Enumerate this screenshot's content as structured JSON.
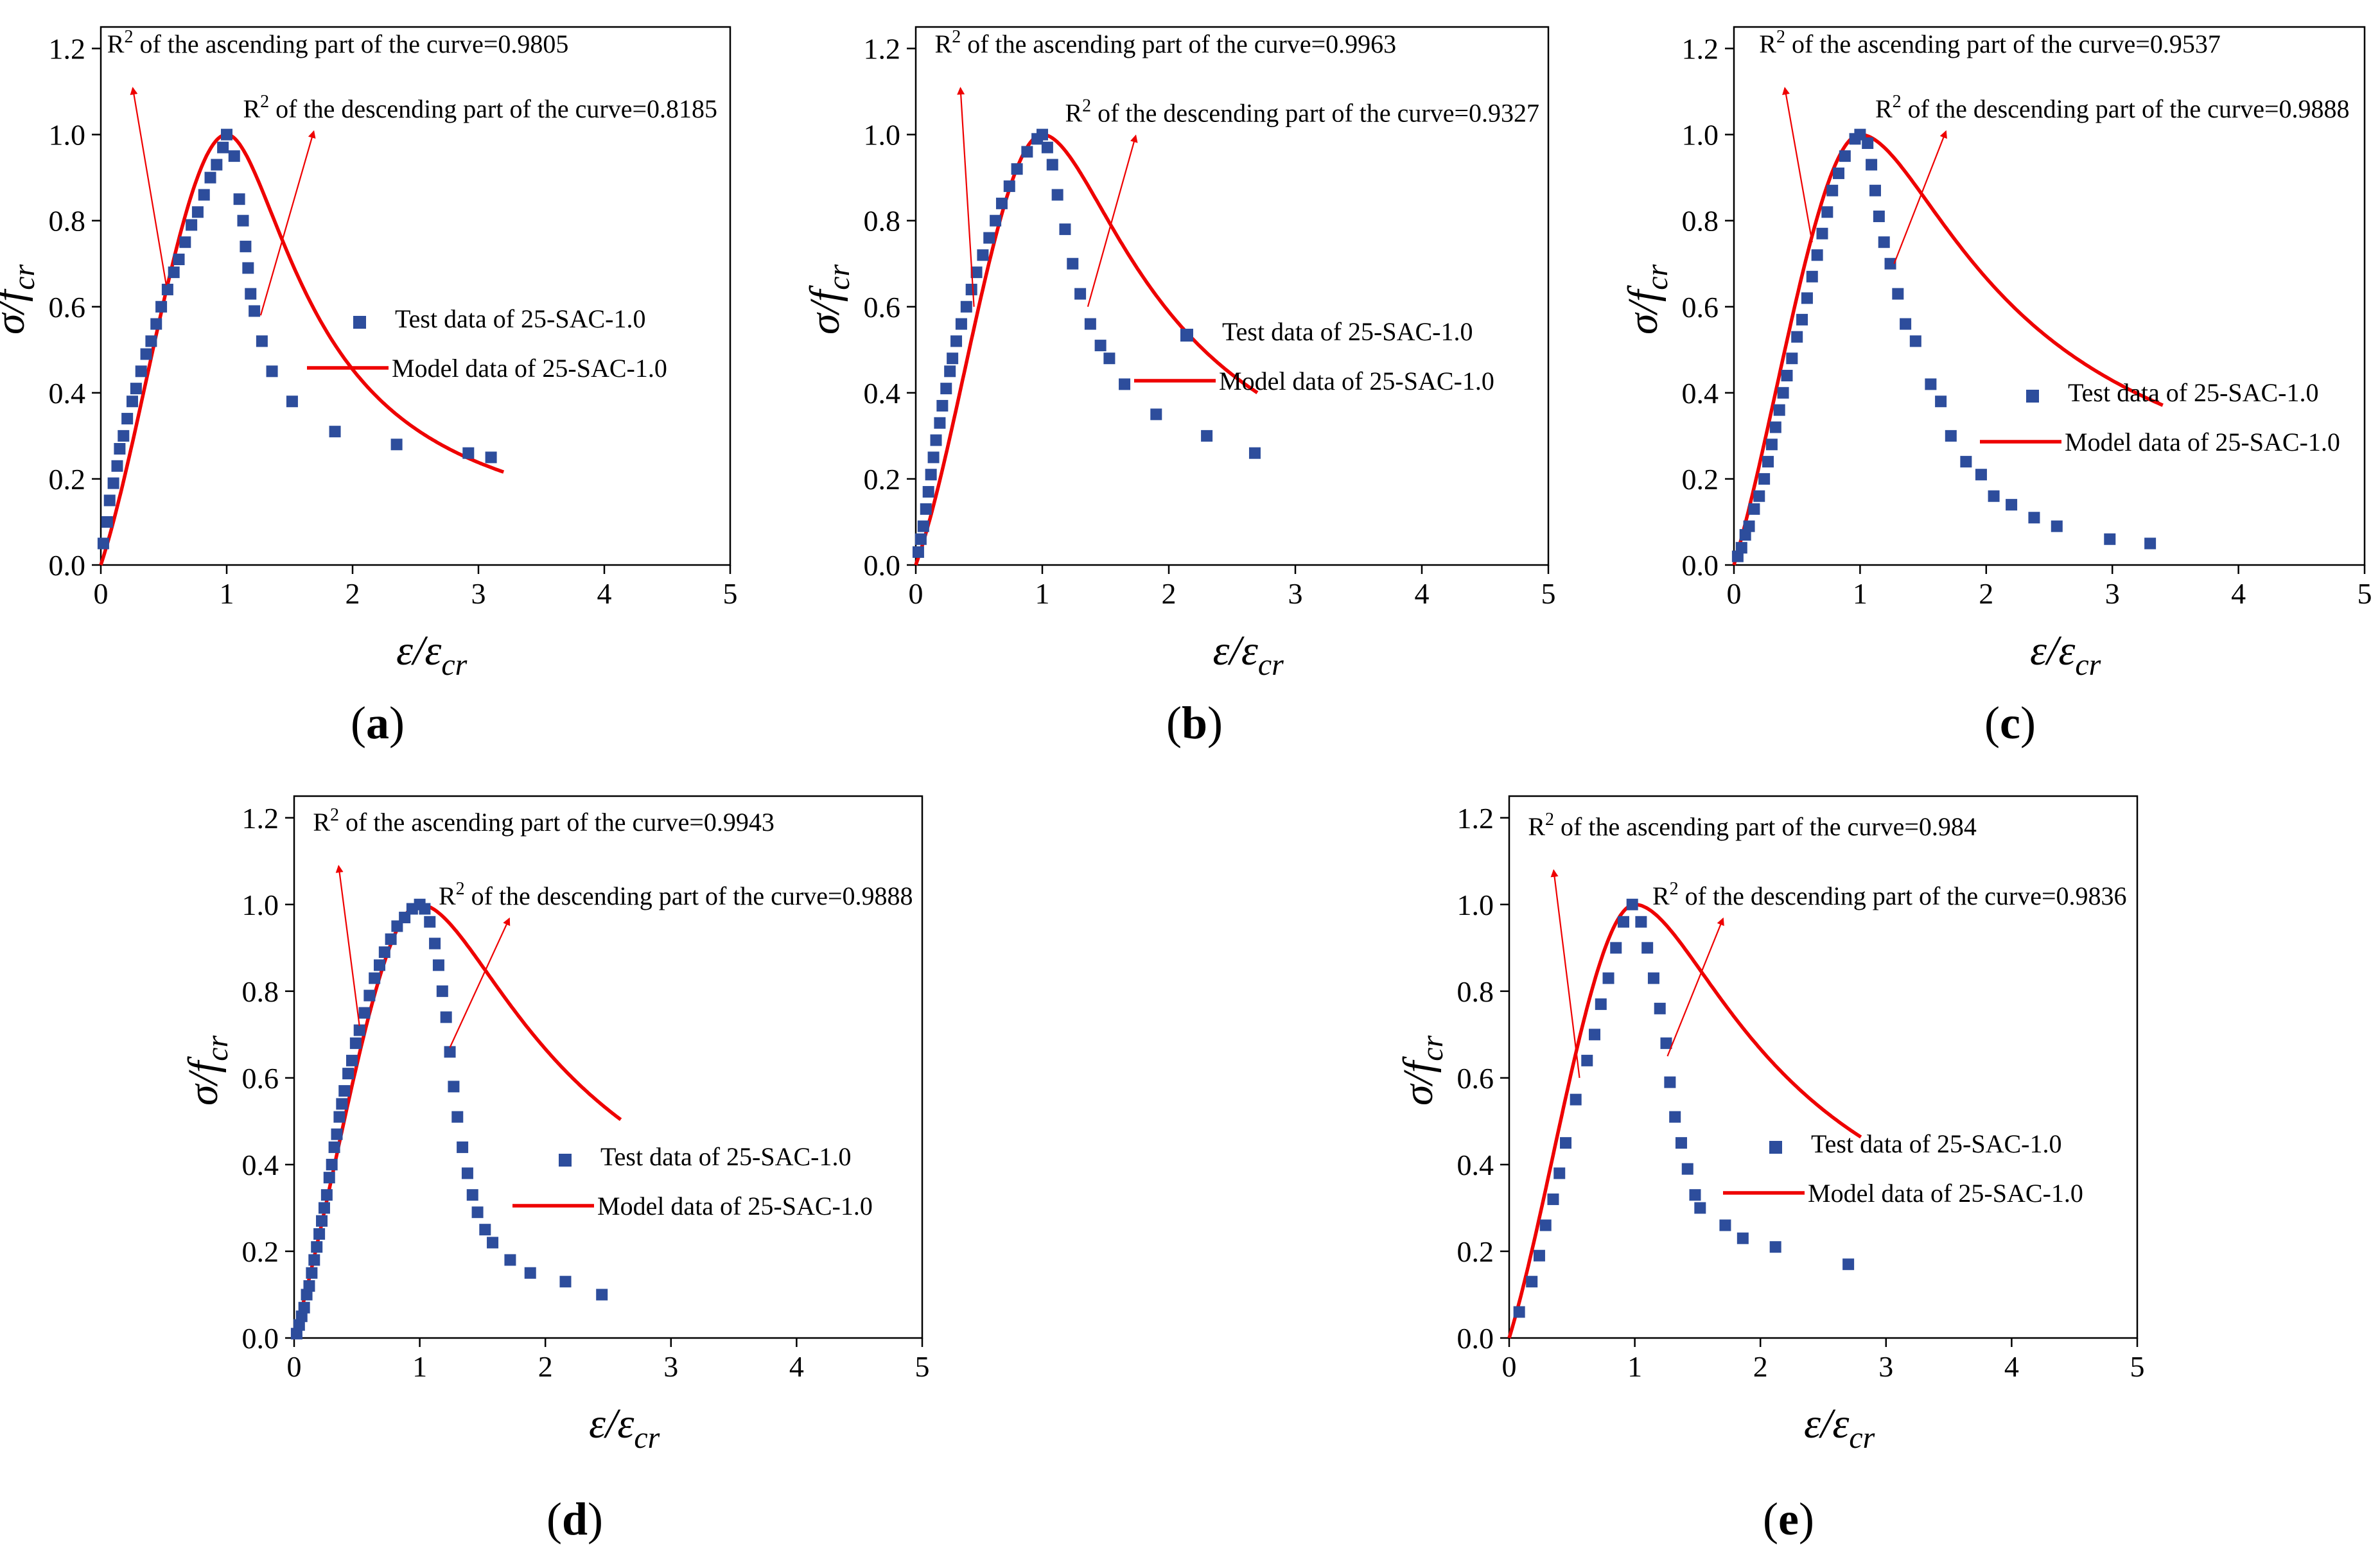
{
  "figure": {
    "colors": {
      "test": "#2d4d9c",
      "model": "#ee0000",
      "arrow": "#ee0000",
      "axis": "#000000"
    },
    "axis_labels": {
      "x_var": "ε/ε",
      "x_sub": "cr",
      "y_var": "σ/f",
      "y_sub": "cr"
    },
    "x_ticks": [
      0,
      1,
      2,
      3,
      4,
      5
    ],
    "y_ticks": [
      "0.0",
      "0.2",
      "0.4",
      "0.6",
      "0.8",
      "1.0",
      "1.2"
    ]
  },
  "chart_data": [
    {
      "panel": "a",
      "type": "scatter+line",
      "caption_open": "(",
      "caption_letter": "a",
      "caption_close": ")",
      "xlim": [
        0,
        5
      ],
      "ylim": [
        0,
        1.25
      ],
      "xlabel": "ε/εcr",
      "ylabel": "σ/fcr",
      "annotation_asc": {
        "prefix": "R",
        "sup": "2",
        "text": " of the ascending part of the curve=0.9805",
        "x": 0.05,
        "y": 1.19,
        "target_x": 0.52,
        "target_y": 0.65
      },
      "annotation_desc": {
        "prefix": "R",
        "sup": "2",
        "text": " of the descending part of the curve=0.8185",
        "x": 1.13,
        "y": 1.04,
        "target_x": 1.27,
        "target_y": 0.58
      },
      "legend": {
        "test": "Test data of 25-SAC-1.0",
        "model": "Model data of 25-SAC-1.0"
      },
      "test_points": [
        [
          0.02,
          0.05
        ],
        [
          0.05,
          0.1
        ],
        [
          0.07,
          0.15
        ],
        [
          0.1,
          0.19
        ],
        [
          0.13,
          0.23
        ],
        [
          0.15,
          0.27
        ],
        [
          0.18,
          0.3
        ],
        [
          0.21,
          0.34
        ],
        [
          0.25,
          0.38
        ],
        [
          0.28,
          0.41
        ],
        [
          0.32,
          0.45
        ],
        [
          0.36,
          0.49
        ],
        [
          0.4,
          0.52
        ],
        [
          0.44,
          0.56
        ],
        [
          0.48,
          0.6
        ],
        [
          0.53,
          0.64
        ],
        [
          0.58,
          0.68
        ],
        [
          0.62,
          0.71
        ],
        [
          0.67,
          0.75
        ],
        [
          0.72,
          0.79
        ],
        [
          0.77,
          0.82
        ],
        [
          0.82,
          0.86
        ],
        [
          0.87,
          0.9
        ],
        [
          0.92,
          0.93
        ],
        [
          0.97,
          0.97
        ],
        [
          1.0,
          1.0
        ],
        [
          1.06,
          0.95
        ],
        [
          1.1,
          0.85
        ],
        [
          1.13,
          0.8
        ],
        [
          1.15,
          0.74
        ],
        [
          1.17,
          0.69
        ],
        [
          1.19,
          0.63
        ],
        [
          1.22,
          0.59
        ],
        [
          1.28,
          0.52
        ],
        [
          1.36,
          0.45
        ],
        [
          1.52,
          0.38
        ],
        [
          1.86,
          0.31
        ],
        [
          2.35,
          0.28
        ],
        [
          2.92,
          0.26
        ],
        [
          3.1,
          0.25
        ]
      ],
      "model_x_max": 3.2,
      "model_params": {
        "a": 0.9,
        "b": 2.4
      }
    },
    {
      "panel": "b",
      "type": "scatter+line",
      "caption_open": "(",
      "caption_letter": "b",
      "caption_close": ")",
      "xlim": [
        0,
        5
      ],
      "ylim": [
        0,
        1.25
      ],
      "xlabel": "ε/εcr",
      "ylabel": "σ/fcr",
      "annotation_asc": {
        "prefix": "R",
        "sup": "2",
        "text": " of the ascending part of the curve=0.9963",
        "x": 0.15,
        "y": 1.19,
        "target_x": 0.46,
        "target_y": 0.6
      },
      "annotation_desc": {
        "prefix": "R",
        "sup": "2",
        "text": " of the descending part of the curve=0.9327",
        "x": 1.18,
        "y": 1.03,
        "target_x": 1.36,
        "target_y": 0.6
      },
      "legend": {
        "test": "Test data of 25-SAC-1.0",
        "model": "Model data of 25-SAC-1.0"
      },
      "test_points": [
        [
          0.02,
          0.03
        ],
        [
          0.04,
          0.06
        ],
        [
          0.06,
          0.09
        ],
        [
          0.08,
          0.13
        ],
        [
          0.1,
          0.17
        ],
        [
          0.12,
          0.21
        ],
        [
          0.14,
          0.25
        ],
        [
          0.16,
          0.29
        ],
        [
          0.19,
          0.33
        ],
        [
          0.21,
          0.37
        ],
        [
          0.24,
          0.41
        ],
        [
          0.27,
          0.45
        ],
        [
          0.29,
          0.48
        ],
        [
          0.32,
          0.52
        ],
        [
          0.36,
          0.56
        ],
        [
          0.4,
          0.6
        ],
        [
          0.44,
          0.64
        ],
        [
          0.48,
          0.68
        ],
        [
          0.53,
          0.72
        ],
        [
          0.58,
          0.76
        ],
        [
          0.63,
          0.8
        ],
        [
          0.68,
          0.84
        ],
        [
          0.74,
          0.88
        ],
        [
          0.8,
          0.92
        ],
        [
          0.88,
          0.96
        ],
        [
          0.96,
          0.99
        ],
        [
          1.0,
          1.0
        ],
        [
          1.04,
          0.97
        ],
        [
          1.08,
          0.93
        ],
        [
          1.12,
          0.86
        ],
        [
          1.18,
          0.78
        ],
        [
          1.24,
          0.7
        ],
        [
          1.3,
          0.63
        ],
        [
          1.38,
          0.56
        ],
        [
          1.46,
          0.51
        ],
        [
          1.53,
          0.48
        ],
        [
          1.65,
          0.42
        ],
        [
          1.9,
          0.35
        ],
        [
          2.3,
          0.3
        ],
        [
          2.68,
          0.26
        ]
      ],
      "model_x_max": 2.7,
      "model_params": {
        "a": 0.82,
        "b": 1.4
      }
    },
    {
      "panel": "c",
      "type": "scatter+line",
      "caption_open": "(",
      "caption_letter": "c",
      "caption_close": ")",
      "xlim": [
        0,
        5
      ],
      "ylim": [
        0,
        1.25
      ],
      "xlabel": "ε/εcr",
      "ylabel": "σ/fcr",
      "annotation_asc": {
        "prefix": "R",
        "sup": "2",
        "text": " of the ascending part of the curve=0.9537",
        "x": 0.2,
        "y": 1.19,
        "target_x": 0.62,
        "target_y": 0.75
      },
      "annotation_desc": {
        "prefix": "R",
        "sup": "2",
        "text": " of the descending part of the curve=0.9888",
        "x": 1.12,
        "y": 1.04,
        "target_x": 1.27,
        "target_y": 0.7
      },
      "legend": {
        "test": "Test data of 25-SAC-1.0",
        "model": "Model data of 25-SAC-1.0"
      },
      "test_points": [
        [
          0.03,
          0.02
        ],
        [
          0.06,
          0.04
        ],
        [
          0.09,
          0.07
        ],
        [
          0.12,
          0.09
        ],
        [
          0.16,
          0.13
        ],
        [
          0.2,
          0.16
        ],
        [
          0.24,
          0.2
        ],
        [
          0.27,
          0.24
        ],
        [
          0.3,
          0.28
        ],
        [
          0.33,
          0.32
        ],
        [
          0.36,
          0.36
        ],
        [
          0.39,
          0.4
        ],
        [
          0.42,
          0.44
        ],
        [
          0.46,
          0.48
        ],
        [
          0.5,
          0.53
        ],
        [
          0.54,
          0.57
        ],
        [
          0.58,
          0.62
        ],
        [
          0.62,
          0.67
        ],
        [
          0.66,
          0.72
        ],
        [
          0.7,
          0.77
        ],
        [
          0.74,
          0.82
        ],
        [
          0.78,
          0.87
        ],
        [
          0.83,
          0.91
        ],
        [
          0.88,
          0.95
        ],
        [
          0.96,
          0.99
        ],
        [
          1.0,
          1.0
        ],
        [
          1.06,
          0.98
        ],
        [
          1.09,
          0.93
        ],
        [
          1.12,
          0.87
        ],
        [
          1.15,
          0.81
        ],
        [
          1.19,
          0.75
        ],
        [
          1.24,
          0.7
        ],
        [
          1.3,
          0.63
        ],
        [
          1.36,
          0.56
        ],
        [
          1.44,
          0.52
        ],
        [
          1.56,
          0.42
        ],
        [
          1.64,
          0.38
        ],
        [
          1.72,
          0.3
        ],
        [
          1.84,
          0.24
        ],
        [
          1.96,
          0.21
        ],
        [
          2.06,
          0.16
        ],
        [
          2.2,
          0.14
        ],
        [
          2.38,
          0.11
        ],
        [
          2.56,
          0.09
        ],
        [
          2.98,
          0.06
        ],
        [
          3.3,
          0.05
        ]
      ],
      "model_x_max": 3.4,
      "model_params": {
        "a": 0.99,
        "b": 1.0
      }
    },
    {
      "panel": "d",
      "type": "scatter+line",
      "caption_open": "(",
      "caption_letter": "d",
      "caption_close": ")",
      "xlim": [
        0,
        5
      ],
      "ylim": [
        0,
        1.25
      ],
      "xlabel": "ε/εcr",
      "ylabel": "σ/fcr",
      "annotation_asc": {
        "prefix": "R",
        "sup": "2",
        "text": " of the ascending part of the curve=0.9943",
        "x": 0.15,
        "y": 1.17,
        "target_x": 0.52,
        "target_y": 0.72
      },
      "annotation_desc": {
        "prefix": "R",
        "sup": "2",
        "text": " of the descending part of the curve=0.9888",
        "x": 1.15,
        "y": 1.0,
        "target_x": 1.24,
        "target_y": 0.67
      },
      "legend": {
        "test": "Test data of 25-SAC-1.0",
        "model": "Model data of 25-SAC-1.0"
      },
      "test_points": [
        [
          0.02,
          0.01
        ],
        [
          0.04,
          0.03
        ],
        [
          0.06,
          0.05
        ],
        [
          0.08,
          0.07
        ],
        [
          0.1,
          0.1
        ],
        [
          0.12,
          0.12
        ],
        [
          0.14,
          0.15
        ],
        [
          0.16,
          0.18
        ],
        [
          0.18,
          0.21
        ],
        [
          0.2,
          0.24
        ],
        [
          0.22,
          0.27
        ],
        [
          0.24,
          0.3
        ],
        [
          0.26,
          0.33
        ],
        [
          0.28,
          0.37
        ],
        [
          0.3,
          0.4
        ],
        [
          0.32,
          0.44
        ],
        [
          0.34,
          0.47
        ],
        [
          0.36,
          0.51
        ],
        [
          0.38,
          0.54
        ],
        [
          0.4,
          0.57
        ],
        [
          0.43,
          0.61
        ],
        [
          0.46,
          0.64
        ],
        [
          0.49,
          0.68
        ],
        [
          0.52,
          0.71
        ],
        [
          0.56,
          0.75
        ],
        [
          0.6,
          0.79
        ],
        [
          0.64,
          0.83
        ],
        [
          0.68,
          0.86
        ],
        [
          0.72,
          0.89
        ],
        [
          0.77,
          0.92
        ],
        [
          0.82,
          0.95
        ],
        [
          0.88,
          0.97
        ],
        [
          0.94,
          0.99
        ],
        [
          1.0,
          1.0
        ],
        [
          1.04,
          0.99
        ],
        [
          1.08,
          0.96
        ],
        [
          1.12,
          0.91
        ],
        [
          1.15,
          0.86
        ],
        [
          1.18,
          0.8
        ],
        [
          1.21,
          0.74
        ],
        [
          1.24,
          0.66
        ],
        [
          1.27,
          0.58
        ],
        [
          1.3,
          0.51
        ],
        [
          1.34,
          0.44
        ],
        [
          1.38,
          0.38
        ],
        [
          1.42,
          0.33
        ],
        [
          1.46,
          0.29
        ],
        [
          1.52,
          0.25
        ],
        [
          1.58,
          0.22
        ],
        [
          1.72,
          0.18
        ],
        [
          1.88,
          0.15
        ],
        [
          2.16,
          0.13
        ],
        [
          2.45,
          0.1
        ]
      ],
      "model_x_max": 2.6,
      "model_params": {
        "a": 1.05,
        "b": 1.0
      }
    },
    {
      "panel": "e",
      "type": "scatter+line",
      "caption_open": "(",
      "caption_letter": "e",
      "caption_close": ")",
      "xlim": [
        0,
        5
      ],
      "ylim": [
        0,
        1.25
      ],
      "xlabel": "ε/εcr",
      "ylabel": "σ/fcr",
      "annotation_asc": {
        "prefix": "R",
        "sup": "2",
        "text": " of the ascending part of the curve=0.984",
        "x": 0.15,
        "y": 1.16,
        "target_x": 0.56,
        "target_y": 0.6
      },
      "annotation_desc": {
        "prefix": "R",
        "sup": "2",
        "text": " of the descending part of the curve=0.9836",
        "x": 1.14,
        "y": 1.0,
        "target_x": 1.26,
        "target_y": 0.65
      },
      "legend": {
        "test": "Test data of 25-SAC-1.0",
        "model": "Model data of 25-SAC-1.0"
      },
      "test_points": [
        [
          0.08,
          0.06
        ],
        [
          0.18,
          0.13
        ],
        [
          0.24,
          0.19
        ],
        [
          0.29,
          0.26
        ],
        [
          0.35,
          0.32
        ],
        [
          0.4,
          0.38
        ],
        [
          0.45,
          0.45
        ],
        [
          0.53,
          0.55
        ],
        [
          0.62,
          0.64
        ],
        [
          0.68,
          0.7
        ],
        [
          0.73,
          0.77
        ],
        [
          0.79,
          0.83
        ],
        [
          0.85,
          0.9
        ],
        [
          0.91,
          0.96
        ],
        [
          0.98,
          1.0
        ],
        [
          1.05,
          0.96
        ],
        [
          1.1,
          0.9
        ],
        [
          1.15,
          0.83
        ],
        [
          1.2,
          0.76
        ],
        [
          1.25,
          0.68
        ],
        [
          1.28,
          0.59
        ],
        [
          1.32,
          0.51
        ],
        [
          1.37,
          0.45
        ],
        [
          1.42,
          0.39
        ],
        [
          1.48,
          0.33
        ],
        [
          1.52,
          0.3
        ],
        [
          1.72,
          0.26
        ],
        [
          1.86,
          0.23
        ],
        [
          2.12,
          0.21
        ],
        [
          2.7,
          0.17
        ]
      ],
      "model_x_max": 2.8,
      "model_params": {
        "a": 0.95,
        "b": 1.0
      }
    }
  ]
}
